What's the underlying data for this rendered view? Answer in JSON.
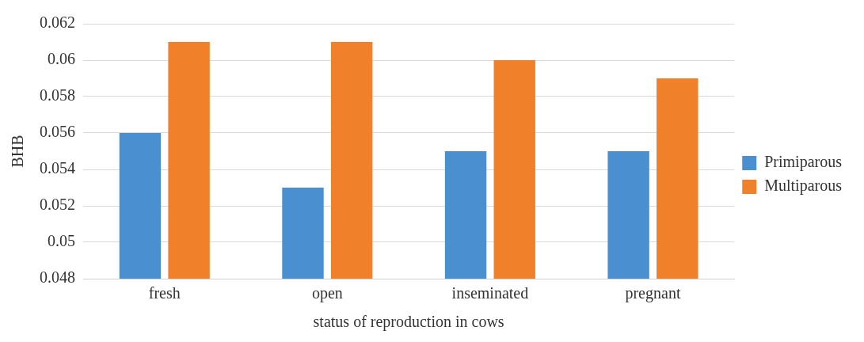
{
  "chart_data": {
    "type": "bar",
    "xlabel": "status of reproduction in cows",
    "ylabel": "BHB",
    "categories": [
      "fresh",
      "open",
      "inseminated",
      "pregnant"
    ],
    "series": [
      {
        "name": "Primiparous",
        "color": "#4a90d0",
        "values": [
          0.056,
          0.053,
          0.055,
          0.055
        ]
      },
      {
        "name": "Multiparous",
        "color": "#f0802a",
        "values": [
          0.061,
          0.061,
          0.06,
          0.059
        ]
      }
    ],
    "ylim": [
      0.048,
      0.062
    ],
    "yticks": [
      0.048,
      0.05,
      0.052,
      0.054,
      0.056,
      0.058,
      0.06,
      0.062
    ],
    "grid": "y",
    "legend": "right"
  }
}
